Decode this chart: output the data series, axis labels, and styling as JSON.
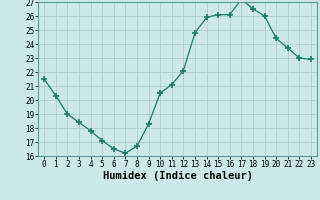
{
  "x": [
    0,
    1,
    2,
    3,
    4,
    5,
    6,
    7,
    8,
    9,
    10,
    11,
    12,
    13,
    14,
    15,
    16,
    17,
    18,
    19,
    20,
    21,
    22,
    23
  ],
  "y": [
    21.5,
    20.3,
    19.0,
    18.4,
    17.8,
    17.1,
    16.5,
    16.2,
    16.7,
    18.3,
    20.5,
    21.1,
    22.1,
    24.8,
    25.9,
    26.1,
    26.1,
    27.2,
    26.5,
    26.0,
    24.4,
    23.7,
    23.0,
    22.9
  ],
  "line_color": "#1a7a6e",
  "marker": "+",
  "marker_size": 4,
  "bg_color": "#cce8e8",
  "grid_color": "#b0cccc",
  "xlabel": "Humidex (Indice chaleur)",
  "ylim": [
    16,
    27
  ],
  "yticks": [
    16,
    17,
    18,
    19,
    20,
    21,
    22,
    23,
    24,
    25,
    26,
    27
  ],
  "xticks": [
    0,
    1,
    2,
    3,
    4,
    5,
    6,
    7,
    8,
    9,
    10,
    11,
    12,
    13,
    14,
    15,
    16,
    17,
    18,
    19,
    20,
    21,
    22,
    23
  ],
  "tick_label_fontsize": 5.5,
  "xlabel_fontsize": 7.5
}
